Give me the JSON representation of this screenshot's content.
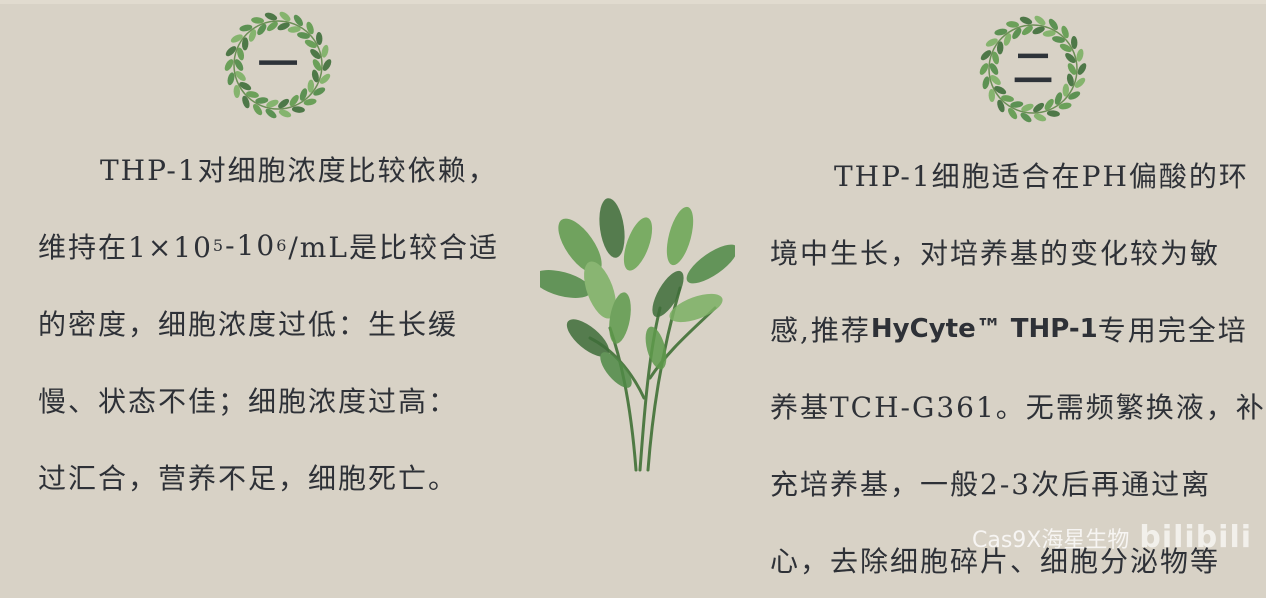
{
  "sections": [
    {
      "number": "一",
      "lines": [
        {
          "text": "THP-1对细胞浓度比较依赖，"
        },
        {
          "pre": "维持在1×10",
          "sup1": "5",
          "mid": "-10",
          "sup2": "6",
          "post": "/mL是比较合适"
        },
        {
          "text": "的密度，细胞浓度过低：生长缓"
        },
        {
          "text": "慢、状态不佳；细胞浓度过高："
        },
        {
          "text": "过汇合，营养不足，细胞死亡。"
        }
      ]
    },
    {
      "number": "二",
      "lines": [
        {
          "text": "THP-1细胞适合在PH偏酸的环"
        },
        {
          "text": "境中生长，对培养基的变化较为敏"
        },
        {
          "pre": "感,推荐",
          "bold": "HyCyte™ THP-1",
          "post": "专用完全培"
        },
        {
          "text": "养基TCH-G361。无需频繁换液，补"
        },
        {
          "text": "充培养基，一般2-3次后再通过离"
        },
        {
          "text": "心，去除细胞碎片、细胞分泌物等"
        }
      ]
    }
  ],
  "watermark": {
    "text": "Cas9X海星生物",
    "logo": "bilibili"
  },
  "colors": {
    "background": "#d8d2c6",
    "text": "#2e3137",
    "leaf_green": "#5f9a4c",
    "leaf_dark": "#3f6e3a"
  },
  "icons": [
    "leaf-wreath-icon",
    "plant-illustration-icon"
  ]
}
